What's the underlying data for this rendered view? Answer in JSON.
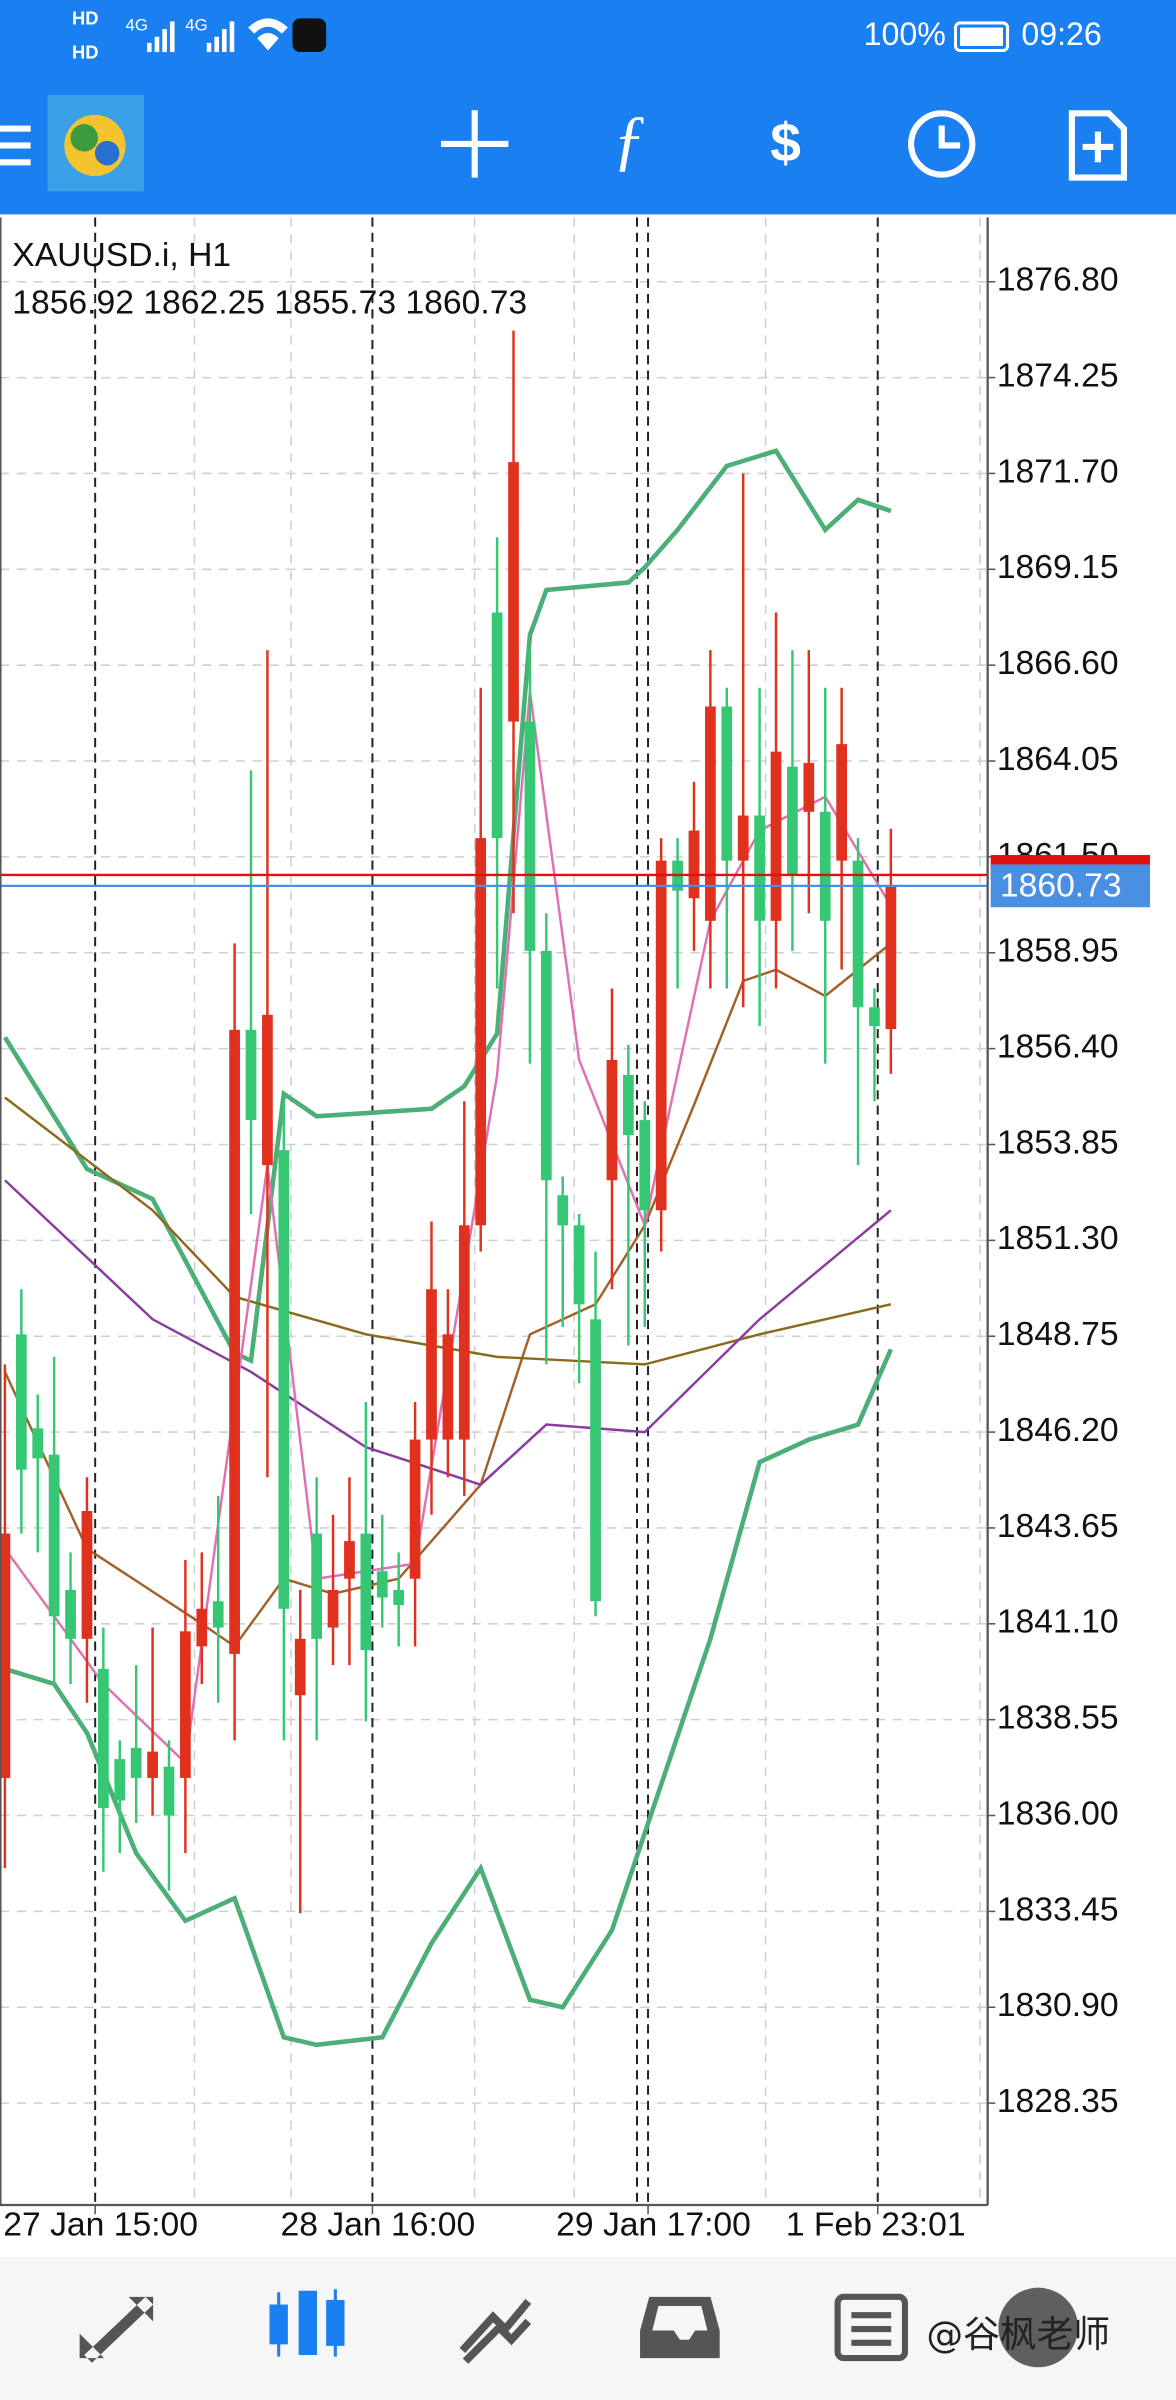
{
  "status_bar": {
    "hd1": "HD",
    "hd2": "HD",
    "net1": "4G",
    "net2": "4G",
    "battery": "100%",
    "time": "09:26"
  },
  "watermark": "@谷枫老师",
  "chart_data": {
    "type": "candlestick",
    "symbol": "XAUUSD.i, H1",
    "ohlc": "1856.92 1862.25 1855.73 1860.73",
    "up_color": "#e0301e",
    "down_color": "#36c774",
    "open": [
      1837.0,
      1848.8,
      1846.3,
      1845.6,
      1842.0,
      1840.7,
      1839.9,
      1837.5,
      1837.8,
      1837.0,
      1837.3,
      1837.0,
      1840.5,
      1841.7,
      1840.3,
      1856.9,
      1853.3,
      1853.7,
      1839.2,
      1843.5,
      1841.0,
      1842.3,
      1843.5,
      1842.5,
      1842.0,
      1842.3,
      1846.0,
      1846.0,
      1846.0,
      1851.7,
      1868.0,
      1865.1,
      1865.1,
      1859.0,
      1852.5,
      1851.7,
      1849.2,
      1852.9,
      1855.7,
      1854.5,
      1852.1,
      1861.4,
      1860.4,
      1859.8,
      1865.5,
      1861.4,
      1862.6,
      1859.8,
      1863.9,
      1862.7,
      1862.7,
      1861.4,
      1861.4,
      1857.5,
      1856.92
    ],
    "high": [
      1848.0,
      1850.0,
      1847.2,
      1848.2,
      1843.0,
      1845.0,
      1841.0,
      1838.0,
      1840.0,
      1841.0,
      1838.0,
      1842.8,
      1843.0,
      1844.5,
      1859.2,
      1863.8,
      1867.0,
      1855.0,
      1842.0,
      1845.0,
      1844.0,
      1845.0,
      1847.0,
      1844.0,
      1843.0,
      1847.0,
      1851.8,
      1850.0,
      1855.0,
      1866.0,
      1870.0,
      1875.5,
      1867.0,
      1860.0,
      1853.0,
      1852.0,
      1851.0,
      1858.0,
      1856.5,
      1855.0,
      1862.0,
      1862.0,
      1863.5,
      1867.0,
      1866.0,
      1871.7,
      1866.0,
      1868.0,
      1867.0,
      1867.0,
      1866.0,
      1866.0,
      1862.0,
      1858.0,
      1862.25
    ],
    "low": [
      1834.6,
      1843.5,
      1843.0,
      1839.5,
      1839.5,
      1839.0,
      1834.5,
      1835.0,
      1835.8,
      1836.0,
      1834.0,
      1835.0,
      1839.5,
      1839.0,
      1838.0,
      1852.0,
      1845.0,
      1838.0,
      1833.4,
      1838.0,
      1840.0,
      1840.0,
      1838.5,
      1841.0,
      1840.5,
      1840.5,
      1844.0,
      1845.0,
      1844.5,
      1851.0,
      1858.0,
      1860.0,
      1856.0,
      1848.0,
      1849.0,
      1847.5,
      1841.3,
      1850.0,
      1848.5,
      1849.0,
      1851.0,
      1858.0,
      1859.0,
      1858.0,
      1858.0,
      1857.5,
      1857.0,
      1858.0,
      1859.0,
      1860.0,
      1856.0,
      1858.5,
      1853.3,
      1855.0,
      1855.73
    ],
    "close": [
      1843.5,
      1845.2,
      1845.5,
      1841.3,
      1840.7,
      1844.1,
      1836.2,
      1836.4,
      1837.0,
      1837.7,
      1836.0,
      1840.9,
      1841.5,
      1841.0,
      1856.9,
      1854.5,
      1857.3,
      1841.5,
      1840.7,
      1840.7,
      1842.0,
      1843.3,
      1840.4,
      1841.8,
      1841.6,
      1846.0,
      1850.0,
      1848.8,
      1851.7,
      1862.0,
      1862.0,
      1872.0,
      1859.0,
      1852.9,
      1851.7,
      1849.6,
      1841.7,
      1856.1,
      1854.1,
      1852.1,
      1861.4,
      1860.6,
      1862.2,
      1865.5,
      1861.4,
      1862.6,
      1859.8,
      1864.3,
      1861.0,
      1864.0,
      1859.8,
      1864.5,
      1857.5,
      1857.0,
      1860.73
    ],
    "indicators": [
      {
        "color": "#4caf78",
        "x": [
          0,
          5,
          9,
          14,
          15,
          17,
          19,
          26,
          28,
          30,
          32,
          33,
          38,
          39,
          41,
          44,
          47,
          50,
          52,
          54
        ],
        "values": [
          1856.7,
          1853.2,
          1852.4,
          1848.3,
          1848.1,
          1855.2,
          1854.6,
          1854.8,
          1855.4,
          1856.8,
          1867.4,
          1868.6,
          1868.8,
          1869.2,
          1870.2,
          1871.9,
          1872.3,
          1870.2,
          1871.0,
          1870.7
        ]
      },
      {
        "color": "#4caf78",
        "x": [
          0,
          3,
          5,
          8,
          11,
          14,
          17,
          19,
          23,
          26,
          29,
          32,
          34,
          37,
          43,
          46,
          49,
          52,
          54
        ],
        "values": [
          1839.9,
          1839.5,
          1838.2,
          1835.0,
          1833.2,
          1833.8,
          1830.1,
          1829.9,
          1830.1,
          1832.6,
          1834.6,
          1831.1,
          1830.9,
          1832.95,
          1840.7,
          1845.4,
          1846.0,
          1846.4,
          1848.4
        ]
      },
      {
        "color": "#a0622a",
        "x": [
          0,
          5,
          12,
          14,
          17,
          20,
          24,
          29,
          32,
          36,
          39,
          42,
          45,
          47,
          50,
          54
        ],
        "values": [
          1847.8,
          1843.1,
          1841.1,
          1840.5,
          1842.3,
          1841.9,
          1842.3,
          1844.8,
          1848.8,
          1849.6,
          1851.7,
          1854.9,
          1858.2,
          1858.5,
          1857.8,
          1859.2
        ]
      },
      {
        "color": "#8c6a1c",
        "x": [
          0,
          9,
          14,
          22,
          30,
          39,
          46,
          54
        ],
        "values": [
          1855.1,
          1852.1,
          1849.8,
          1848.8,
          1848.2,
          1848.0,
          1848.8,
          1849.6
        ]
      },
      {
        "color": "#8a3ca0",
        "x": [
          0,
          9,
          15,
          22,
          29,
          33,
          39,
          46,
          54
        ],
        "values": [
          1852.9,
          1849.2,
          1847.8,
          1845.8,
          1844.8,
          1846.4,
          1846.2,
          1849.2,
          1852.1
        ]
      },
      {
        "color": "#e070b4",
        "x": [
          0,
          6,
          11,
          16,
          19,
          25,
          30,
          32,
          35,
          39,
          43,
          46,
          50,
          54
        ],
        "values": [
          1843.1,
          1839.5,
          1837.4,
          1853.3,
          1842.3,
          1842.7,
          1855.7,
          1865.9,
          1856.1,
          1851.7,
          1859.8,
          1862.2,
          1863.1,
          1860.2
        ]
      }
    ],
    "ask": 1861.02,
    "ask_color": "#e01010",
    "bid": 1860.73,
    "bid_color": "#4a90e2",
    "xlim": [
      -0.3,
      59.9
    ],
    "xticks": [
      {
        "value": 5.5,
        "label": "27 Jan 15:00"
      },
      {
        "value": 22.4,
        "label": "28 Jan 16:00"
      },
      {
        "value": 39.2,
        "label": "29 Jan 17:00"
      },
      {
        "value": 53.2,
        "label": "1 Feb 23:01"
      }
    ],
    "ylim": [
      1825.64,
      1878.51
    ],
    "yticks": [
      {
        "value": 1876.8,
        "label": "1876.80"
      },
      1874.25,
      {
        "value": 1871.7,
        "label": "1871.70"
      },
      1869.15,
      {
        "value": 1866.6,
        "label": "1866.60"
      },
      1864.05,
      {
        "value": 1861.5,
        "label": "1861.50"
      },
      1858.95,
      {
        "value": 1856.4,
        "label": "1856.40"
      },
      1853.85,
      {
        "value": 1851.3,
        "label": "1851.30"
      },
      1848.75,
      {
        "value": 1846.2,
        "label": "1846.20"
      },
      1843.65,
      {
        "value": 1841.1,
        "label": "1841.10"
      },
      1838.55,
      {
        "value": 1836,
        "label": "1836.00"
      },
      1833.45,
      {
        "value": 1830.9,
        "label": "1830.90"
      },
      1828.35
    ],
    "grid": true
  }
}
